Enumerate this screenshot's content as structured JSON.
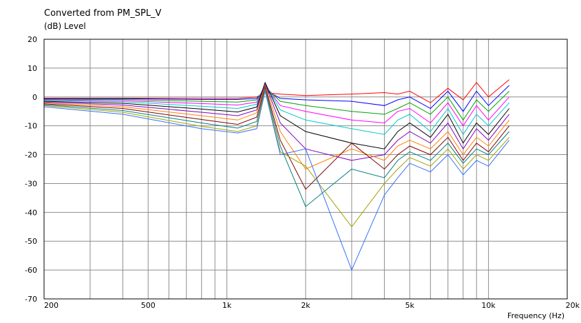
{
  "chart_data": {
    "type": "line",
    "title": "Converted from PM_SPL_V",
    "ylabel": "(dB)  Level",
    "xlabel": "Frequency  (Hz)",
    "x_scale": "log",
    "xlim": [
      200,
      20000
    ],
    "ylim": [
      -70,
      20
    ],
    "grid": true,
    "x_ticks": [
      {
        "value": 200,
        "label": "200"
      },
      {
        "value": 500,
        "label": "500"
      },
      {
        "value": 1000,
        "label": "1k"
      },
      {
        "value": 2000,
        "label": "2k"
      },
      {
        "value": 5000,
        "label": "5k"
      },
      {
        "value": 10000,
        "label": "10k"
      },
      {
        "value": 20000,
        "label": "20k"
      }
    ],
    "x_minor_grid": [
      300,
      400,
      600,
      700,
      800,
      900,
      3000,
      4000,
      6000,
      7000,
      8000,
      9000
    ],
    "y_ticks": [
      20,
      10,
      0,
      -10,
      -20,
      -30,
      -40,
      -50,
      -60,
      -70
    ],
    "palette": [
      "#ff0000",
      "#0000ff",
      "#00a000",
      "#ff00ff",
      "#00c8c8",
      "#000000",
      "#8000c0",
      "#ff8000",
      "#800000",
      "#008080",
      "#a0a000",
      "#3070ff",
      "#c00060",
      "#40c000",
      "#c08000",
      "#6060ff"
    ],
    "series": [
      {
        "x": [
          200,
          400,
          800,
          1100,
          1300,
          1400,
          1600,
          2000,
          3000,
          4000,
          4500,
          5000,
          6000,
          7000,
          8000,
          9000,
          10000,
          12000
        ],
        "y": [
          -0.4,
          -0.4,
          -0.5,
          -0.5,
          0.0,
          1.5,
          1.0,
          0.5,
          1.0,
          1.5,
          1.0,
          2.0,
          -2.0,
          3.0,
          -1.0,
          5.0,
          0.0,
          6.0
        ]
      },
      {
        "x": [
          200,
          400,
          800,
          1100,
          1300,
          1400,
          1600,
          2000,
          3000,
          4000,
          4500,
          5000,
          6000,
          7000,
          8000,
          9000,
          10000,
          12000
        ],
        "y": [
          -0.6,
          -0.6,
          -0.9,
          -0.9,
          -0.5,
          2.5,
          -0.5,
          -1.0,
          -1.5,
          -3.0,
          -1.0,
          0.0,
          -4.0,
          2.0,
          -5.0,
          2.0,
          -3.0,
          4.0
        ]
      },
      {
        "x": [
          200,
          400,
          800,
          1100,
          1300,
          1400,
          1600,
          2000,
          3000,
          4000,
          4500,
          5000,
          6000,
          7000,
          8000,
          9000,
          10000,
          12000
        ],
        "y": [
          -0.8,
          -0.9,
          -1.5,
          -1.8,
          -1.0,
          3.5,
          -1.5,
          -3.0,
          -5.0,
          -6.0,
          -4.0,
          -2.0,
          -6.0,
          0.0,
          -8.0,
          -1.0,
          -5.0,
          2.0
        ]
      },
      {
        "x": [
          200,
          400,
          800,
          1100,
          1300,
          1400,
          1600,
          2000,
          3000,
          4000,
          4500,
          5000,
          6000,
          7000,
          8000,
          9000,
          10000,
          12000
        ],
        "y": [
          -1.0,
          -1.3,
          -2.3,
          -2.8,
          -1.8,
          4.0,
          -3.0,
          -5.0,
          -8.0,
          -9.0,
          -5.0,
          -4.0,
          -9.0,
          -2.0,
          -10.0,
          -3.0,
          -8.0,
          0.0
        ]
      },
      {
        "x": [
          200,
          400,
          800,
          1100,
          1300,
          1400,
          1600,
          2000,
          3000,
          4000,
          4500,
          5000,
          6000,
          7000,
          8000,
          9000,
          10000,
          12000
        ],
        "y": [
          -1.2,
          -1.7,
          -3.2,
          -4.0,
          -2.5,
          4.5,
          -4.5,
          -8.0,
          -11.0,
          -13.0,
          -8.0,
          -6.0,
          -12.0,
          -4.0,
          -13.0,
          -6.0,
          -10.0,
          -2.0
        ]
      },
      {
        "x": [
          200,
          400,
          800,
          1100,
          1300,
          1400,
          1600,
          2000,
          3000,
          4000,
          4500,
          5000,
          6000,
          7000,
          8000,
          9000,
          10000,
          12000
        ],
        "y": [
          -1.5,
          -2.2,
          -4.2,
          -5.2,
          -3.5,
          5.0,
          -6.5,
          -12.0,
          -16.0,
          -18.0,
          -12.0,
          -9.0,
          -14.0,
          -6.0,
          -16.0,
          -9.0,
          -13.0,
          -4.0
        ]
      },
      {
        "x": [
          200,
          400,
          800,
          1100,
          1300,
          1400,
          1600,
          2000,
          3000,
          4000,
          4500,
          5000,
          6000,
          7000,
          8000,
          9000,
          10000,
          12000
        ],
        "y": [
          -1.8,
          -2.8,
          -5.3,
          -6.5,
          -4.5,
          4.5,
          -9.0,
          -18.0,
          -22.0,
          -20.0,
          -15.0,
          -12.0,
          -16.0,
          -9.0,
          -18.0,
          -11.0,
          -15.0,
          -6.0
        ]
      },
      {
        "x": [
          200,
          400,
          800,
          1100,
          1300,
          1400,
          1600,
          2000,
          3000,
          4000,
          4500,
          5000,
          6000,
          7000,
          8000,
          9000,
          10000,
          12000
        ],
        "y": [
          -2.1,
          -3.4,
          -6.5,
          -8.0,
          -5.5,
          4.0,
          -12.0,
          -25.0,
          -18.0,
          -22.0,
          -17.0,
          -15.0,
          -18.0,
          -12.0,
          -20.0,
          -14.0,
          -17.0,
          -8.0
        ]
      },
      {
        "x": [
          200,
          400,
          800,
          1100,
          1300,
          1400,
          1600,
          2000,
          3000,
          4000,
          4500,
          5000,
          6000,
          7000,
          8000,
          9000,
          10000,
          12000
        ],
        "y": [
          -2.4,
          -4.0,
          -7.8,
          -9.5,
          -7.0,
          3.5,
          -15.0,
          -32.0,
          -16.0,
          -25.0,
          -20.0,
          -17.0,
          -20.0,
          -14.0,
          -22.0,
          -16.0,
          -19.0,
          -10.0
        ]
      },
      {
        "x": [
          200,
          400,
          800,
          1100,
          1300,
          1400,
          1600,
          2000,
          3000,
          4000,
          4500,
          5000,
          6000,
          7000,
          8000,
          9000,
          10000,
          12000
        ],
        "y": [
          -2.7,
          -4.7,
          -9.0,
          -10.8,
          -8.5,
          3.0,
          -17.0,
          -38.0,
          -25.0,
          -28.0,
          -22.0,
          -19.0,
          -22.0,
          -16.0,
          -23.0,
          -18.0,
          -20.0,
          -12.0
        ]
      },
      {
        "x": [
          200,
          400,
          800,
          1100,
          1300,
          1400,
          1600,
          2000,
          3000,
          4000,
          4500,
          5000,
          6000,
          7000,
          8000,
          9000,
          10000,
          12000
        ],
        "y": [
          -3.0,
          -5.3,
          -10.2,
          -12.0,
          -10.0,
          2.5,
          -19.0,
          -24.0,
          -45.0,
          -30.0,
          -25.0,
          -21.0,
          -24.0,
          -18.0,
          -25.0,
          -20.0,
          -22.0,
          -14.0
        ]
      },
      {
        "x": [
          200,
          400,
          800,
          1100,
          1300,
          1400,
          1600,
          2000,
          3000,
          4000,
          4500,
          5000,
          6000,
          7000,
          8000,
          9000,
          10000,
          12000
        ],
        "y": [
          -3.4,
          -6.0,
          -11.0,
          -12.5,
          -11.0,
          2.0,
          -20.0,
          -18.0,
          -60.0,
          -34.0,
          -28.0,
          -23.0,
          -26.0,
          -20.0,
          -27.0,
          -22.0,
          -24.0,
          -15.0
        ]
      }
    ]
  }
}
